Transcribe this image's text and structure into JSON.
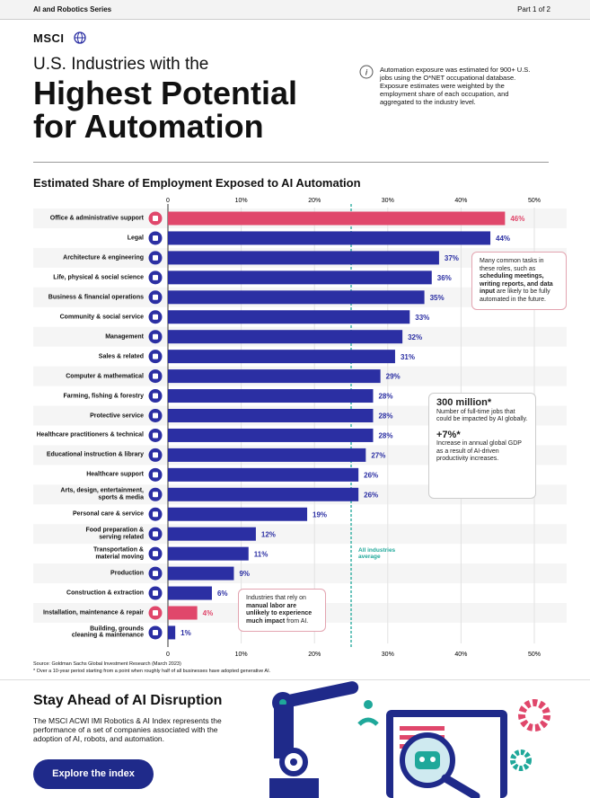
{
  "header": {
    "series": "AI and Robotics Series",
    "part": "Part 1 of 2",
    "brand": "MSCI",
    "title_line1": "U.S. Industries with the",
    "title_line2": "Highest Potential\nfor Automation",
    "info": "Automation exposure was estimated for 900+ U.S. jobs using the O*NET occupational database. Exposure estimates were weighted by the employment share of each occupation, and aggregated to the industry level."
  },
  "chart_data": {
    "type": "hbar",
    "title": "Estimated Share of Employment Exposed to AI Automation",
    "categories": [
      "Office & administrative support",
      "Legal",
      "Architecture & engineering",
      "Life, physical & social science",
      "Business & financial operations",
      "Community & social service",
      "Management",
      "Sales & related",
      "Computer & mathematical",
      "Farming, fishing & forestry",
      "Protective service",
      "Healthcare practitioners & technical",
      "Educational instruction & library",
      "Healthcare support",
      "Arts, design, entertainment,\nsports & media",
      "Personal care & service",
      "Food preparation &\nserving related",
      "Transportation &\nmaterial moving",
      "Production",
      "Construction & extraction",
      "Installation, maintenance & repair",
      "Building, grounds\ncleaning & maintenance"
    ],
    "values": [
      46,
      44,
      37,
      36,
      35,
      33,
      32,
      31,
      29,
      28,
      28,
      28,
      27,
      26,
      26,
      19,
      12,
      11,
      9,
      6,
      4,
      1
    ],
    "value_labels": [
      "46%",
      "44%",
      "37%",
      "36%",
      "35%",
      "33%",
      "32%",
      "31%",
      "29%",
      "28%",
      "28%",
      "28%",
      "27%",
      "26%",
      "26%",
      "19%",
      "12%",
      "11%",
      "9%",
      "6%",
      "4%",
      "1%"
    ],
    "colors": [
      "#e0476b",
      "#2b2fa3",
      "#2b2fa3",
      "#2b2fa3",
      "#2b2fa3",
      "#2b2fa3",
      "#2b2fa3",
      "#2b2fa3",
      "#2b2fa3",
      "#2b2fa3",
      "#2b2fa3",
      "#2b2fa3",
      "#2b2fa3",
      "#2b2fa3",
      "#2b2fa3",
      "#2b2fa3",
      "#2b2fa3",
      "#2b2fa3",
      "#2b2fa3",
      "#2b2fa3",
      "#e0476b",
      "#2b2fa3"
    ],
    "xlim": [
      0,
      50
    ],
    "xticks": [
      0,
      {
        "value": 10,
        "label": "10%"
      },
      {
        "value": 20,
        "label": "20%"
      },
      {
        "value": 30,
        "label": "30%"
      },
      {
        "value": 40,
        "label": "40%"
      },
      {
        "value": 50,
        "label": "50%"
      }
    ],
    "grid": true,
    "reference_line": {
      "value": 25,
      "label": "All industries\naverage",
      "color": "#1fa89a"
    },
    "annotations": [
      [
        {
          "text": "Many common tasks in these roles, such as "
        },
        {
          "text": "scheduling meetings, writing reports, and data input",
          "bold": true
        },
        {
          "text": " are likely to be fully automated in the future."
        }
      ],
      [
        {
          "text": "Industries that rely on "
        },
        {
          "text": "manual labor are unlikely to experience much impact",
          "bold": true
        },
        {
          "text": " from AI."
        }
      ]
    ],
    "stats": [
      {
        "value": "300 million*",
        "text": "Number of full-time jobs that could be impacted by AI globally."
      },
      {
        "value": "+7%*",
        "text": "Increase in annual global GDP as a result of AI-driven productivity increases."
      }
    ],
    "source": "Source: Goldman Sachs Global Investment Research (March 2023)",
    "footnote": "* Over a 10-year period starting from a point when roughly half of all businesses have adopted generative AI."
  },
  "footer": {
    "title": "Stay Ahead of AI Disruption",
    "text": "The MSCI ACWI IMI Robotics & AI Index represents the performance of a set of companies associated with the adoption of AI, robots, and automation.",
    "button": "Explore the index"
  }
}
